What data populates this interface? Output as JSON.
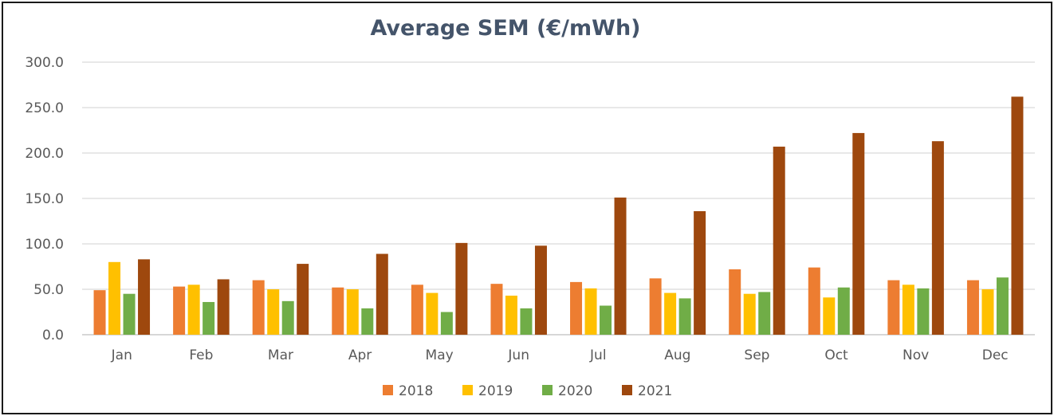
{
  "chart_data": {
    "type": "bar",
    "title": "Average SEM (€/mWh)",
    "categories": [
      "Jan",
      "Feb",
      "Mar",
      "Apr",
      "May",
      "Jun",
      "Jul",
      "Aug",
      "Sep",
      "Oct",
      "Nov",
      "Dec"
    ],
    "series": [
      {
        "name": "2018",
        "color": "#ed7d31",
        "values": [
          49,
          53,
          60,
          52,
          55,
          56,
          58,
          62,
          72,
          74,
          60,
          60
        ]
      },
      {
        "name": "2019",
        "color": "#ffc000",
        "values": [
          80,
          55,
          50,
          50,
          46,
          43,
          51,
          46,
          45,
          41,
          55,
          50
        ]
      },
      {
        "name": "2020",
        "color": "#70ad47",
        "values": [
          45,
          36,
          37,
          29,
          25,
          29,
          32,
          40,
          47,
          52,
          51,
          63
        ]
      },
      {
        "name": "2021",
        "color": "#9e480e",
        "values": [
          83,
          61,
          78,
          89,
          101,
          98,
          151,
          136,
          207,
          222,
          213,
          262
        ]
      }
    ],
    "y_ticks": [
      "0.0",
      "50.0",
      "100.0",
      "150.0",
      "200.0",
      "250.0",
      "300.0"
    ],
    "ylim": [
      0,
      300
    ],
    "grid": true,
    "legend_position": "bottom"
  }
}
